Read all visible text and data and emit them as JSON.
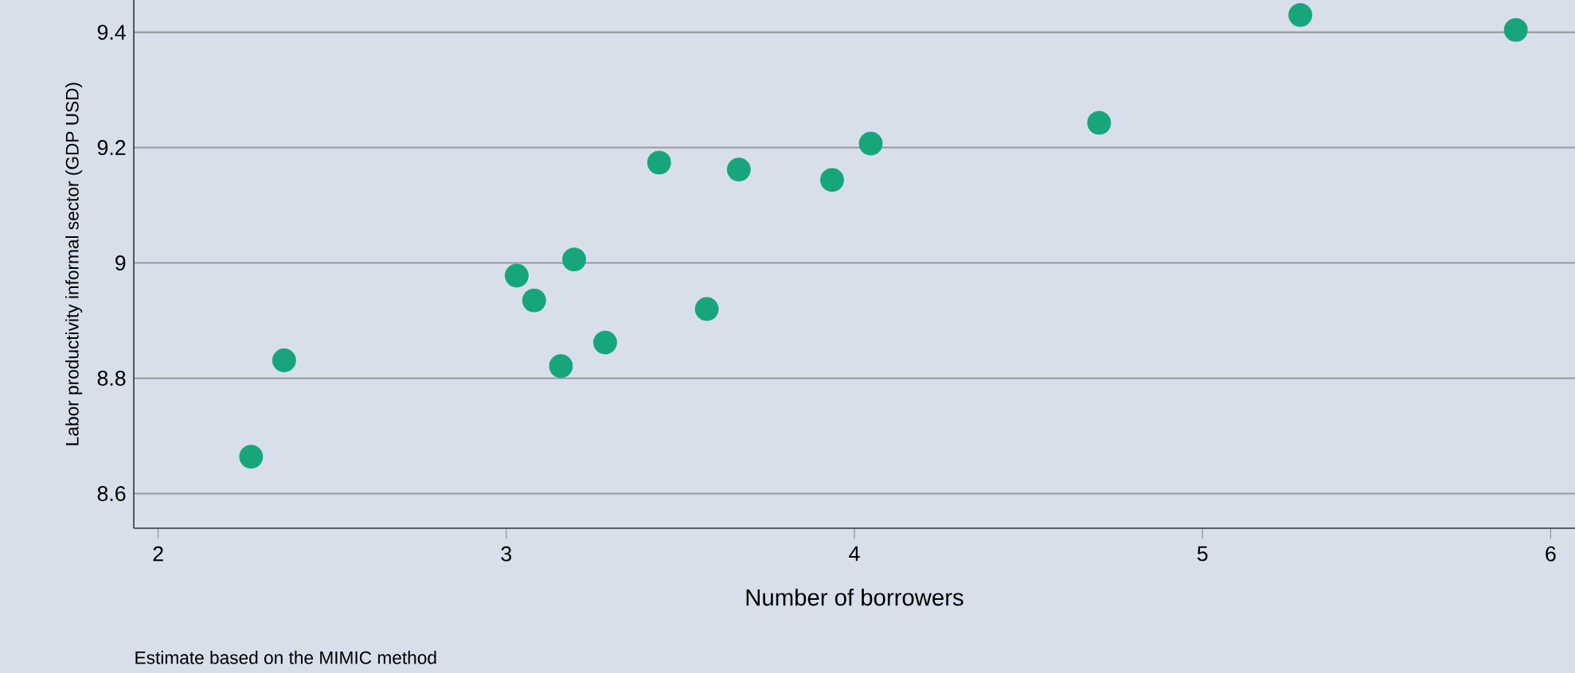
{
  "chart_data": {
    "type": "scatter",
    "x": [
      2.267,
      2.362,
      3.03,
      3.08,
      3.195,
      3.157,
      3.284,
      3.439,
      3.668,
      3.576,
      3.936,
      4.047,
      4.703,
      5.281,
      5.9
    ],
    "values": [
      8.664,
      8.831,
      8.978,
      8.935,
      9.006,
      8.821,
      8.862,
      9.174,
      9.162,
      8.92,
      9.144,
      9.207,
      9.243,
      9.43,
      9.404
    ],
    "color": "#17a67c",
    "marker": "circle",
    "xlabel": "Number of borrowers",
    "ylabel": "Labor productivity informal sector (GDP USD)",
    "xlim": [
      1.93,
      6.07
    ],
    "ylim": [
      8.54,
      9.456
    ],
    "xticks": [
      2,
      3,
      4,
      5,
      6
    ],
    "yticks": [
      8.6,
      8.8,
      9,
      9.2,
      9.4
    ],
    "grid": "y",
    "annotations": [
      "Estimate based on the MIMIC method"
    ]
  }
}
